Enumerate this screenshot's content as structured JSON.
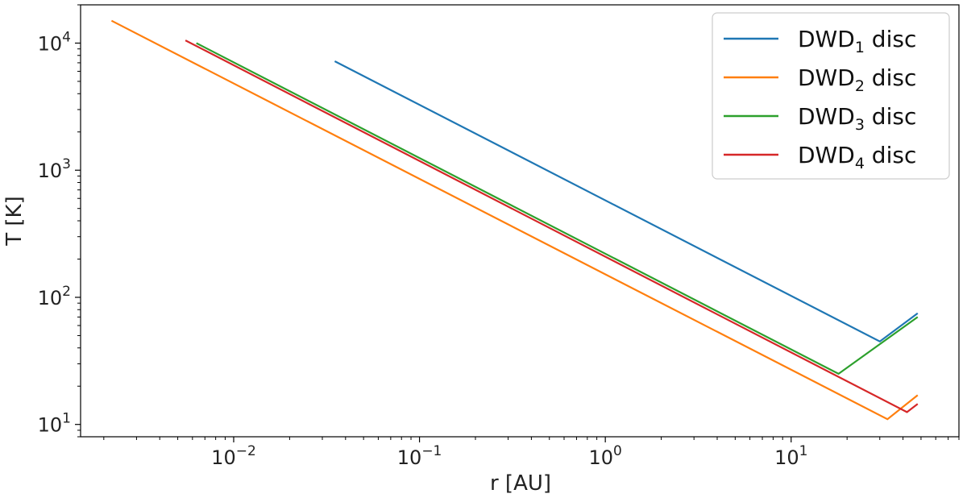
{
  "chart_data": {
    "type": "line",
    "title": "",
    "xlabel": "r [AU]",
    "ylabel": "T [K]",
    "xscale": "log",
    "yscale": "log",
    "xlim": [
      0.0015,
      80
    ],
    "ylim": [
      8,
      20000
    ],
    "grid": false,
    "legend_position": "top-right",
    "x_ticks": [
      {
        "value": 0.01,
        "base": "10",
        "exp": "−2"
      },
      {
        "value": 0.1,
        "base": "10",
        "exp": "−1"
      },
      {
        "value": 1,
        "base": "10",
        "exp": "0"
      },
      {
        "value": 10,
        "base": "10",
        "exp": "1"
      }
    ],
    "y_ticks": [
      {
        "value": 10,
        "base": "10",
        "exp": "1"
      },
      {
        "value": 100,
        "base": "10",
        "exp": "2"
      },
      {
        "value": 1000,
        "base": "10",
        "exp": "3"
      },
      {
        "value": 10000,
        "base": "10",
        "exp": "4"
      }
    ],
    "series": [
      {
        "name": "DWD1 disc",
        "label_main": "DWD",
        "label_sub": "1",
        "label_tail": " disc",
        "color": "#1f77b4",
        "points": [
          [
            0.035,
            7200
          ],
          [
            30,
            45
          ],
          [
            48,
            75
          ]
        ]
      },
      {
        "name": "DWD2 disc",
        "label_main": "DWD",
        "label_sub": "2",
        "label_tail": " disc",
        "color": "#ff7f0e",
        "points": [
          [
            0.0022,
            15000
          ],
          [
            33,
            11
          ],
          [
            48,
            17
          ]
        ]
      },
      {
        "name": "DWD3 disc",
        "label_main": "DWD",
        "label_sub": "3",
        "label_tail": " disc",
        "color": "#2ca02c",
        "points": [
          [
            0.0063,
            10000
          ],
          [
            18,
            25
          ],
          [
            48,
            70
          ]
        ]
      },
      {
        "name": "DWD4 disc",
        "label_main": "DWD",
        "label_sub": "4",
        "label_tail": " disc",
        "color": "#d62728",
        "points": [
          [
            0.0055,
            10500
          ],
          [
            42,
            12.5
          ],
          [
            48,
            14.5
          ]
        ]
      }
    ]
  }
}
